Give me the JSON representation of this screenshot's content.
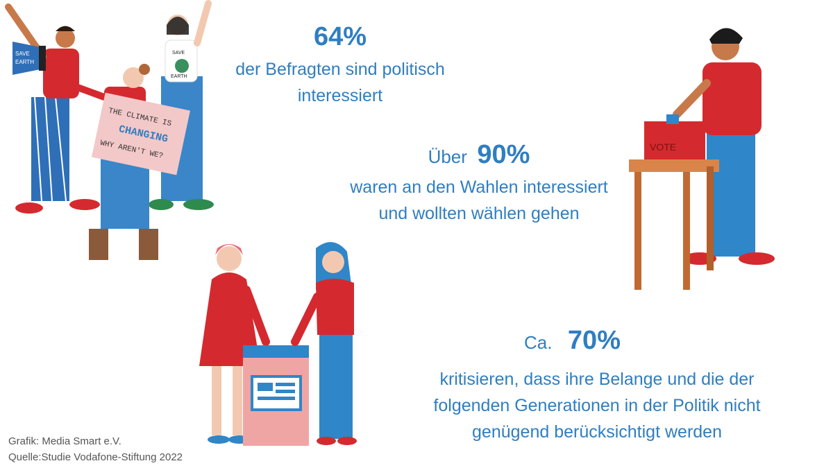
{
  "stat1": {
    "value": "64%",
    "text_line1": "der Befragten sind politisch",
    "text_line2": "interessiert"
  },
  "stat2": {
    "prefix": "Über",
    "value": "90%",
    "text_line1": "waren an den Wahlen interessiert",
    "text_line2": "und wollten wählen gehen"
  },
  "stat3": {
    "prefix": "Ca.",
    "value": "70%",
    "text_line1": "kritisieren, dass ihre Belange und die der",
    "text_line2": "folgenden Generationen in der Politik nicht",
    "text_line3": "genügend berücksichtigt werden"
  },
  "illustration_protest": {
    "sign_line1": "THE CLIMATE IS",
    "sign_line2": "CHANGING",
    "sign_line3": "WHY AREN'T WE?",
    "megaphone_text1": "SAVE",
    "megaphone_text2": "EARTH",
    "shirt_text1": "SAVE",
    "shirt_text2": "EARTH"
  },
  "illustration_voter": {
    "ballot_text": "VOTE"
  },
  "credits": {
    "grafik": "Grafik: Media Smart e.V.",
    "quelle": "Quelle:Studie Vodafone-Stiftung 2022"
  },
  "colors": {
    "accent_blue": "#2f7ec1",
    "red": "#d42a2f",
    "pink": "#f3c8c8"
  }
}
